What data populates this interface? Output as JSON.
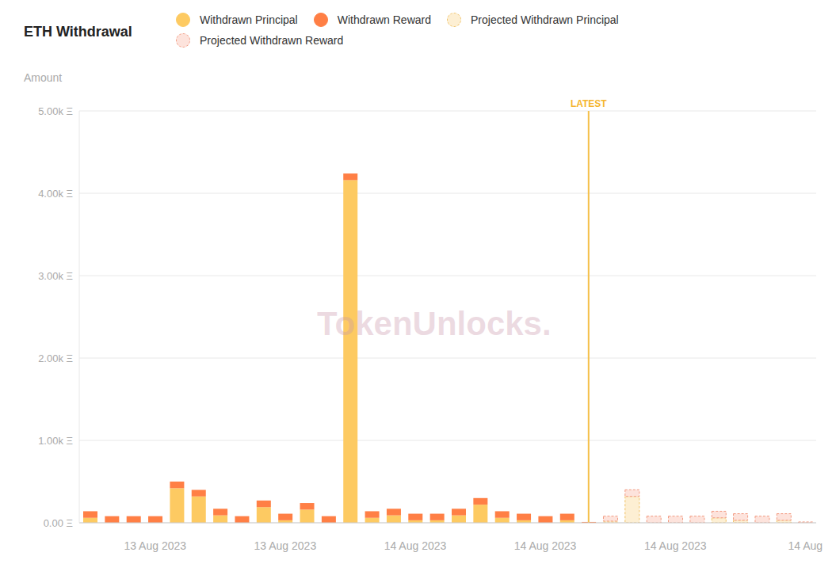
{
  "chart_data": {
    "type": "bar",
    "title": "ETH Withdrawal",
    "y_label": "Amount",
    "watermark": "TokenUnlocks.",
    "stacked": true,
    "grid": true,
    "legend": "top",
    "categories": [
      null,
      null,
      null,
      "13 Aug 2023",
      null,
      null,
      null,
      null,
      null,
      "13 Aug 2023",
      null,
      null,
      null,
      null,
      null,
      "14 Aug 2023",
      null,
      null,
      null,
      null,
      null,
      "14 Aug 2023",
      null,
      null,
      null,
      null,
      null,
      "14 Aug 2023",
      null,
      null,
      null,
      null,
      null,
      "14 Aug"
    ],
    "series": [
      {
        "name": "Withdrawn Principal",
        "color": "#fdca62",
        "line_style": "solid",
        "values": [
          60,
          0,
          0,
          0,
          420,
          320,
          90,
          0,
          190,
          30,
          160,
          0,
          4160,
          60,
          90,
          30,
          30,
          90,
          220,
          60,
          30,
          0,
          30,
          0,
          null,
          null,
          null,
          null,
          null,
          null,
          null,
          null,
          null,
          null
        ]
      },
      {
        "name": "Withdrawn Reward",
        "color": "#ff7f45",
        "line_style": "solid",
        "values": [
          80,
          80,
          80,
          80,
          80,
          80,
          80,
          80,
          80,
          80,
          80,
          80,
          80,
          80,
          80,
          80,
          80,
          80,
          80,
          80,
          80,
          80,
          80,
          10,
          null,
          null,
          null,
          null,
          null,
          null,
          null,
          null,
          null,
          null
        ]
      },
      {
        "name": "Projected Withdrawn Principal",
        "color": "#fdefd3",
        "line_style": "dashed",
        "values": [
          null,
          null,
          null,
          null,
          null,
          null,
          null,
          null,
          null,
          null,
          null,
          null,
          null,
          null,
          null,
          null,
          null,
          null,
          null,
          null,
          null,
          null,
          null,
          null,
          20,
          320,
          0,
          0,
          0,
          60,
          30,
          0,
          30,
          0
        ]
      },
      {
        "name": "Projected Withdrawn Reward",
        "color": "#fde3dc",
        "line_style": "dashed",
        "values": [
          null,
          null,
          null,
          null,
          null,
          null,
          null,
          null,
          null,
          null,
          null,
          null,
          null,
          null,
          null,
          null,
          null,
          null,
          null,
          null,
          null,
          null,
          null,
          null,
          60,
          80,
          80,
          80,
          80,
          80,
          80,
          80,
          80,
          10
        ]
      }
    ],
    "ylim": [
      0,
      5000
    ],
    "yticks": [
      {
        "value": 0,
        "label": "0.00 Ξ"
      },
      {
        "value": 1000,
        "label": "1.00k Ξ"
      },
      {
        "value": 2000,
        "label": "2.00k Ξ"
      },
      {
        "value": 3000,
        "label": "3.00k Ξ"
      },
      {
        "value": 4000,
        "label": "4.00k Ξ"
      },
      {
        "value": 5000,
        "label": "5.00k Ξ"
      }
    ],
    "annotations": [
      {
        "text": "LATEST",
        "category_index": 23
      }
    ]
  }
}
